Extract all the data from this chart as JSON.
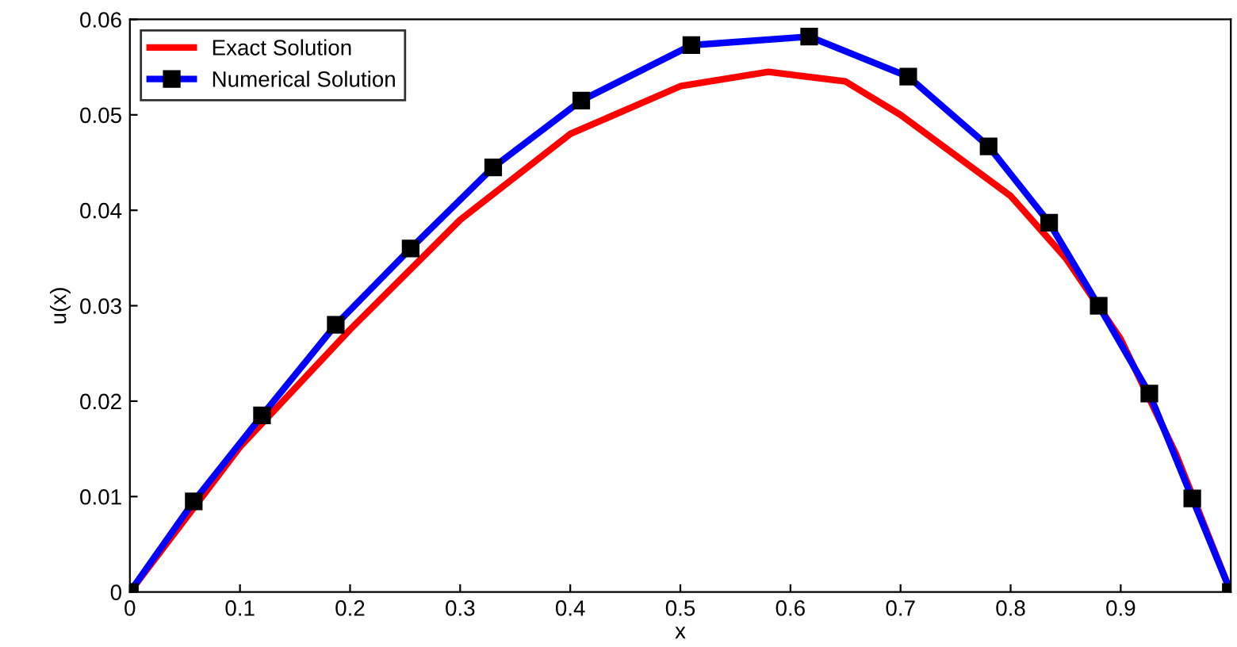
{
  "chart_data": {
    "type": "line",
    "xlabel": "x",
    "ylabel": "u(x)",
    "xlim": [
      0,
      1
    ],
    "ylim": [
      0,
      0.06
    ],
    "xticks": [
      0,
      0.1,
      0.2,
      0.3,
      0.4,
      0.5,
      0.6,
      0.7,
      0.8,
      0.9
    ],
    "yticks": [
      0,
      0.01,
      0.02,
      0.03,
      0.04,
      0.05,
      0.06
    ],
    "grid": false,
    "legend": "top left",
    "series": [
      {
        "name": "Exact Solution",
        "color": "#ff0000",
        "marker": "none",
        "x": [
          0,
          0.1,
          0.2,
          0.3,
          0.4,
          0.5,
          0.58,
          0.65,
          0.7,
          0.8,
          0.85,
          0.9,
          0.95,
          1.0
        ],
        "values": [
          0,
          0.0152,
          0.0275,
          0.039,
          0.048,
          0.053,
          0.0545,
          0.0535,
          0.05,
          0.0415,
          0.035,
          0.0265,
          0.0145,
          0
        ]
      },
      {
        "name": "Numerical Solution",
        "color": "#0000ff",
        "marker": "square",
        "x": [
          0,
          0.058,
          0.12,
          0.187,
          0.255,
          0.33,
          0.41,
          0.51,
          0.617,
          0.707,
          0.78,
          0.835,
          0.88,
          0.926,
          0.965,
          1.0
        ],
        "values": [
          0,
          0.0095,
          0.0185,
          0.028,
          0.036,
          0.0445,
          0.0515,
          0.0573,
          0.0582,
          0.054,
          0.0467,
          0.0387,
          0.03,
          0.0208,
          0.0098,
          0
        ]
      }
    ]
  }
}
